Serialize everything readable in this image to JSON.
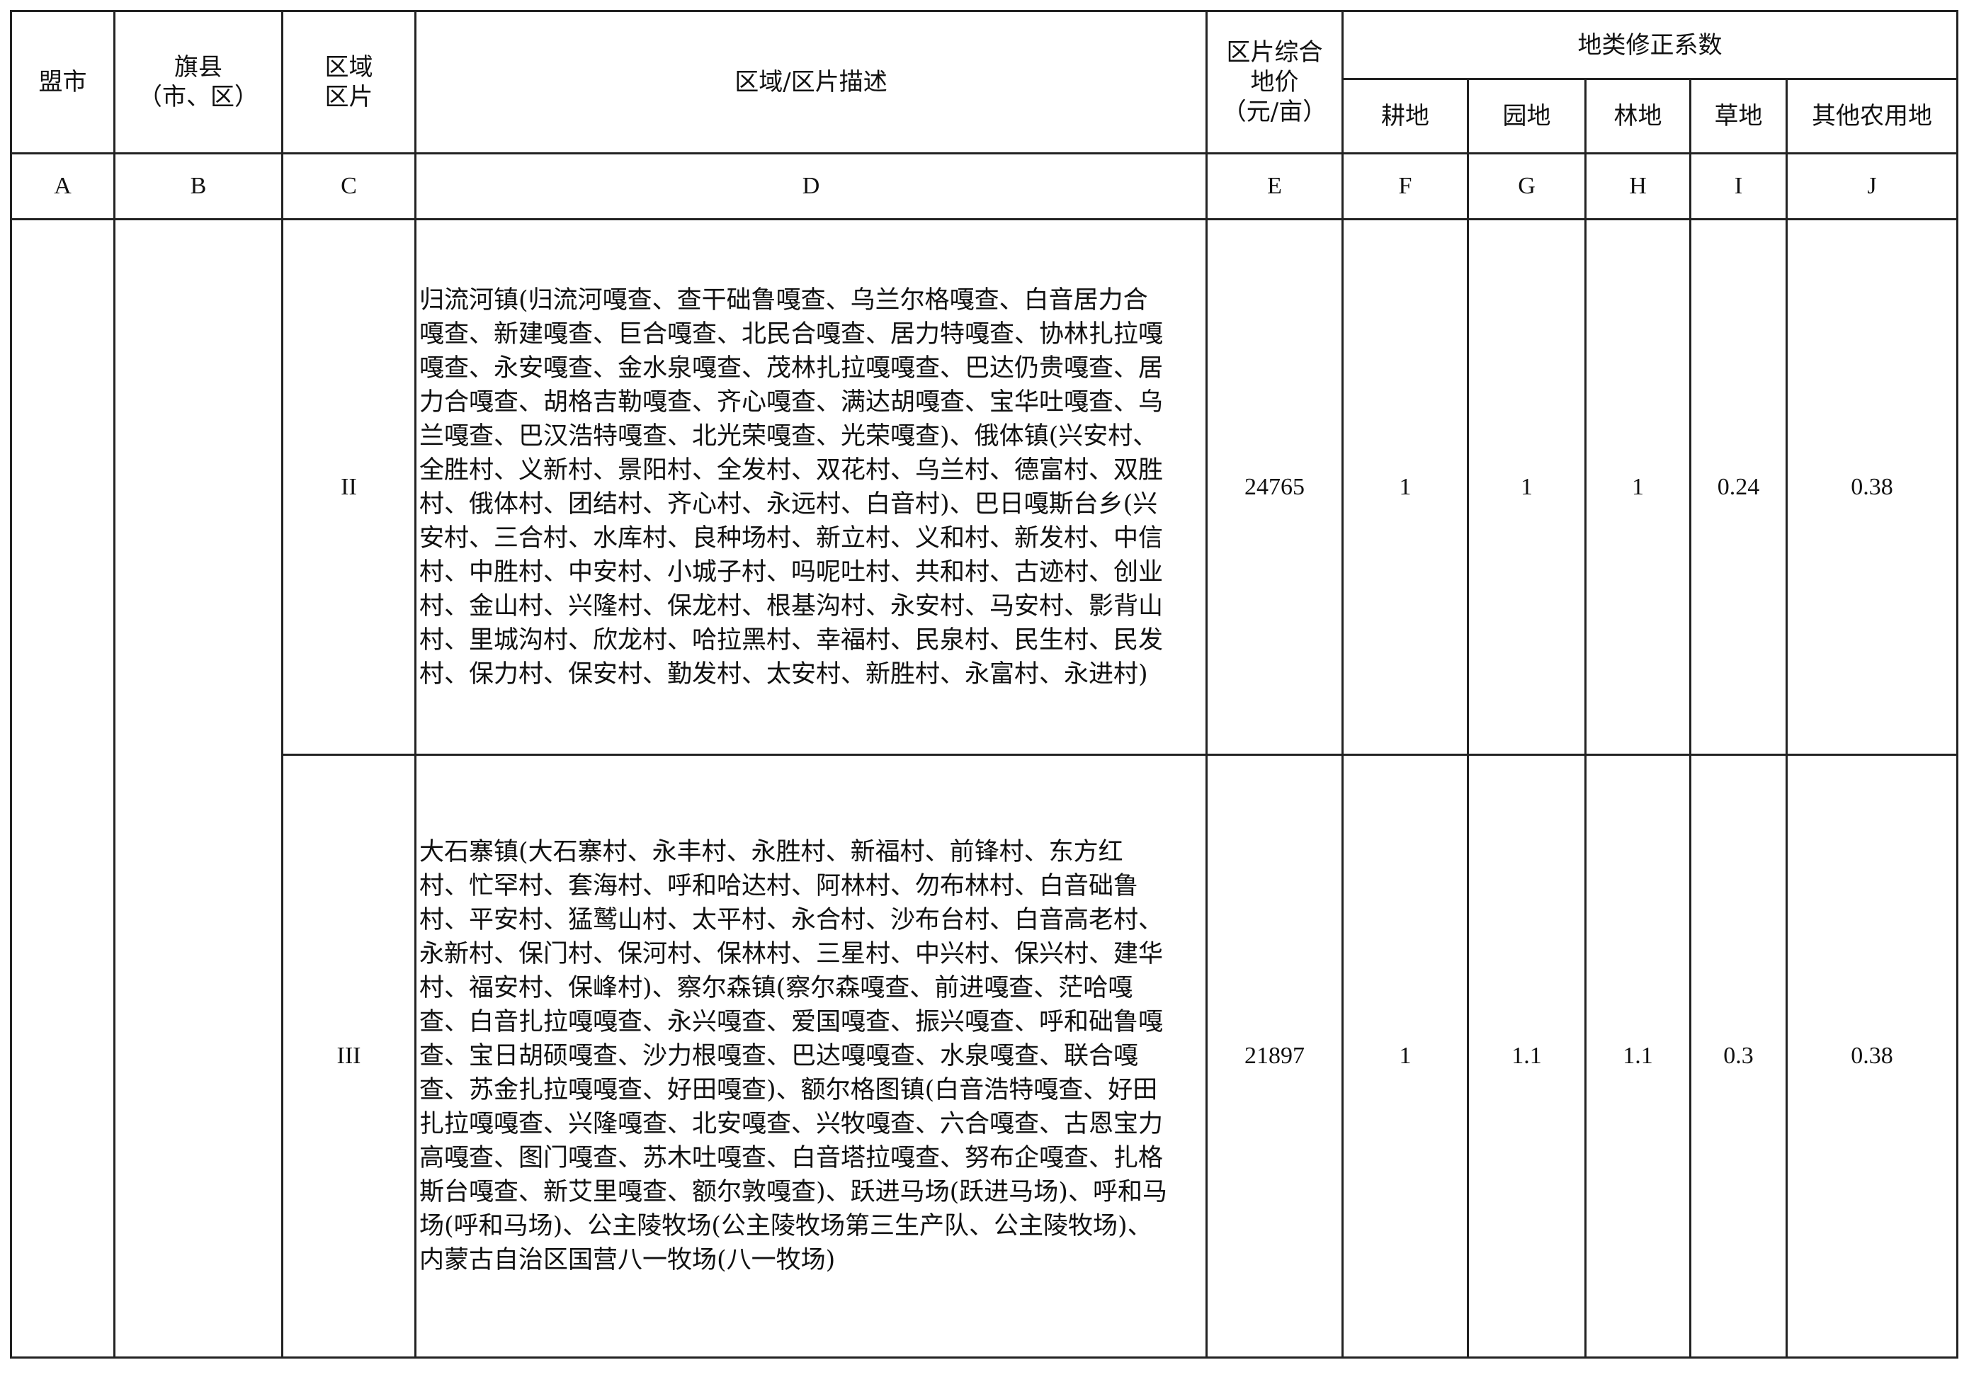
{
  "header": {
    "col_a": "盟市",
    "col_b_line1": "旗县",
    "col_b_line2": "（市、区）",
    "col_c_line1": "区域",
    "col_c_line2": "区片",
    "col_d": "区域/区片描述",
    "col_e_line1": "区片综合",
    "col_e_line2": "地价",
    "col_e_line3": "（元/亩）",
    "group": "地类修正系数",
    "col_f": "耕地",
    "col_g": "园地",
    "col_h": "林地",
    "col_i": "草地",
    "col_j": "其他农用地"
  },
  "letters": [
    "A",
    "B",
    "C",
    "D",
    "E",
    "F",
    "G",
    "H",
    "I",
    "J"
  ],
  "rows": [
    {
      "zone": "II",
      "description_lines": [
        "归流河镇(归流河嘎查、查干础鲁嘎查、乌兰尔格嘎查、白音居力合",
        "嘎查、新建嘎查、巨合嘎查、北民合嘎查、居力特嘎查、协林扎拉嘎",
        "嘎查、永安嘎查、金水泉嘎查、茂林扎拉嘎嘎查、巴达仍贵嘎查、居",
        "力合嘎查、胡格吉勒嘎查、齐心嘎查、满达胡嘎查、宝华吐嘎查、乌",
        "兰嘎查、巴汉浩特嘎查、北光荣嘎查、光荣嘎查)、俄体镇(兴安村、",
        "全胜村、义新村、景阳村、全发村、双花村、乌兰村、德富村、双胜",
        "村、俄体村、团结村、齐心村、永远村、白音村)、巴日嘎斯台乡(兴",
        "安村、三合村、水库村、良种场村、新立村、义和村、新发村、中信",
        "村、中胜村、中安村、小城子村、吗呢吐村、共和村、古迹村、创业",
        "村、金山村、兴隆村、保龙村、根基沟村、永安村、马安村、影背山",
        "村、里城沟村、欣龙村、哈拉黑村、幸福村、民泉村、民生村、民发",
        "村、保力村、保安村、勤发村、太安村、新胜村、永富村、永进村)"
      ],
      "price": "24765",
      "f": "1",
      "g": "1",
      "h": "1",
      "i": "0.24",
      "j": "0.38"
    },
    {
      "zone": "III",
      "description_lines": [
        "大石寨镇(大石寨村、永丰村、永胜村、新福村、前锋村、东方红",
        "村、忙罕村、套海村、呼和哈达村、阿林村、勿布林村、白音础鲁",
        "村、平安村、猛鹫山村、太平村、永合村、沙布台村、白音高老村、",
        "永新村、保门村、保河村、保林村、三星村、中兴村、保兴村、建华",
        "村、福安村、保峰村)、察尔森镇(察尔森嘎查、前进嘎查、茫哈嘎",
        "查、白音扎拉嘎嘎查、永兴嘎查、爱国嘎查、振兴嘎查、呼和础鲁嘎",
        "查、宝日胡硕嘎查、沙力根嘎查、巴达嘎嘎查、水泉嘎查、联合嘎",
        "查、苏金扎拉嘎嘎查、好田嘎查)、额尔格图镇(白音浩特嘎查、好田",
        "扎拉嘎嘎查、兴隆嘎查、北安嘎查、兴牧嘎查、六合嘎查、古恩宝力",
        "高嘎查、图门嘎查、苏木吐嘎查、白音塔拉嘎查、努布企嘎查、扎格",
        "斯台嘎查、新艾里嘎查、额尔敦嘎查)、跃进马场(跃进马场)、呼和马",
        "场(呼和马场)、公主陵牧场(公主陵牧场第三生产队、公主陵牧场)、",
        "内蒙古自治区国营八一牧场(八一牧场)"
      ],
      "price": "21897",
      "f": "1",
      "g": "1.1",
      "h": "1.1",
      "i": "0.3",
      "j": "0.38"
    }
  ]
}
